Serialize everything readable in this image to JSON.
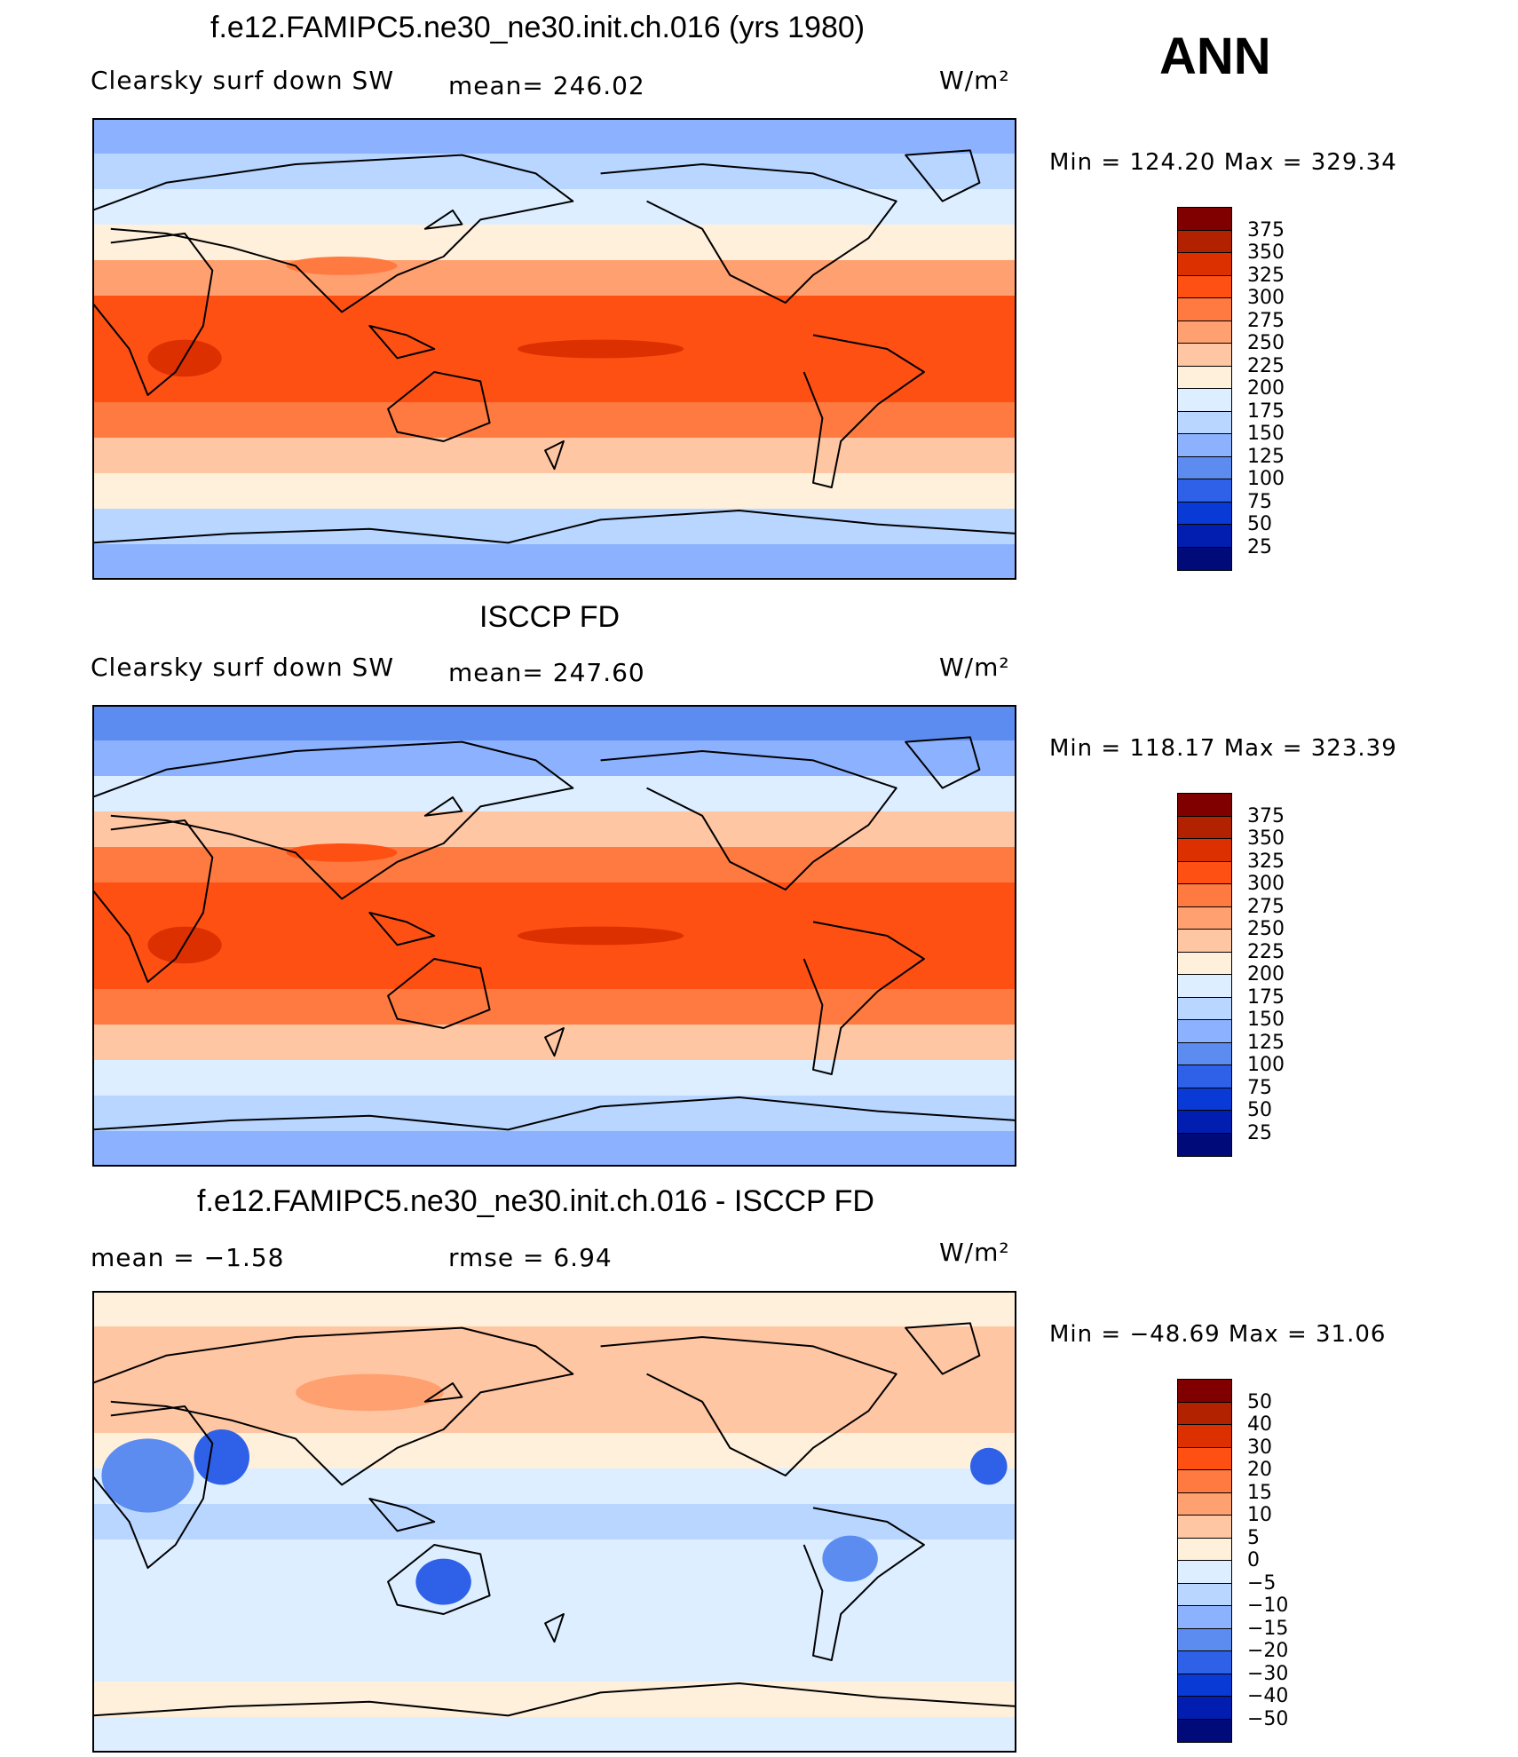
{
  "season": "ANN",
  "unit": "W/m²",
  "panels": [
    {
      "id": "model",
      "title": "f.e12.FAMIPC5.ne30_ne30.init.ch.016 (yrs 1980)",
      "field_label": "Clearsky surf down SW",
      "stat_text": "mean=  246.02",
      "minmax_text": "Min  =  124.20  Max  =  329.34",
      "field_profile": [
        125,
        150,
        185,
        220,
        270,
        300,
        305,
        300,
        280,
        240,
        200,
        160,
        130
      ],
      "colorbar": {
        "labels": [
          "375",
          "350",
          "325",
          "300",
          "275",
          "250",
          "225",
          "200",
          "175",
          "150",
          "125",
          "100",
          "75",
          "50",
          "25"
        ],
        "colors": [
          "#800000",
          "#b22200",
          "#dd3000",
          "#ff5014",
          "#ff7a40",
          "#ffa070",
          "#ffc6a4",
          "#fff0dc",
          "#dceeff",
          "#b8d6ff",
          "#8cb2ff",
          "#5c8cf0",
          "#2e60e8",
          "#0a3ad6",
          "#021eb0",
          "#000a78"
        ]
      }
    },
    {
      "id": "obs",
      "title": "ISCCP FD",
      "field_label": "Clearsky surf down SW",
      "stat_text": "mean=  247.60",
      "minmax_text": "Min  =  118.17  Max  =  323.39",
      "field_profile": [
        110,
        140,
        185,
        225,
        275,
        305,
        315,
        305,
        285,
        240,
        190,
        150,
        125
      ],
      "colorbar": {
        "labels": [
          "375",
          "350",
          "325",
          "300",
          "275",
          "250",
          "225",
          "200",
          "175",
          "150",
          "125",
          "100",
          "75",
          "50",
          "25"
        ],
        "colors": [
          "#800000",
          "#b22200",
          "#dd3000",
          "#ff5014",
          "#ff7a40",
          "#ffa070",
          "#ffc6a4",
          "#fff0dc",
          "#dceeff",
          "#b8d6ff",
          "#8cb2ff",
          "#5c8cf0",
          "#2e60e8",
          "#0a3ad6",
          "#021eb0",
          "#000a78"
        ]
      }
    },
    {
      "id": "diff",
      "title": "f.e12.FAMIPC5.ne30_ne30.init.ch.016 - ISCCP FD",
      "field_label": "mean  =     −1.58",
      "stat_text": "rmse  =     6.94",
      "minmax_text": "Min  =  −48.69  Max  =    31.06",
      "field_profile": [
        4,
        7,
        9,
        6,
        2,
        -4,
        -6,
        -5,
        -3,
        -2,
        -2,
        1,
        -2
      ],
      "colorbar": {
        "labels": [
          "50",
          "40",
          "30",
          "20",
          "15",
          "10",
          "5",
          "0",
          "−5",
          "−10",
          "−15",
          "−20",
          "−30",
          "−40",
          "−50"
        ],
        "colors": [
          "#800000",
          "#b22200",
          "#dd3000",
          "#ff5014",
          "#ff7a40",
          "#ffa070",
          "#ffc6a4",
          "#fff0dc",
          "#dceeff",
          "#b8d6ff",
          "#8cb2ff",
          "#5c8cf0",
          "#2e60e8",
          "#0a3ad6",
          "#021eb0",
          "#000a78"
        ]
      }
    }
  ]
}
